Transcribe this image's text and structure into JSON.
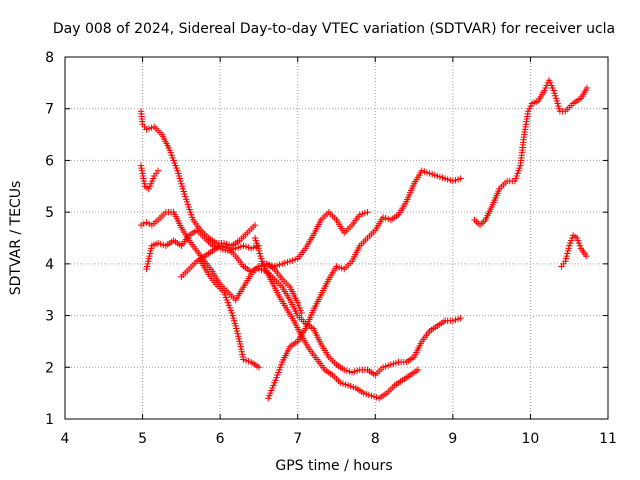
{
  "chart_data": {
    "type": "scatter",
    "title": "Day 008 of 2024, Sidereal Day-to-day VTEC variation (SDTVAR) for receiver ucla",
    "xlabel": "GPS time / hours",
    "ylabel": "SDTVAR / TECUs",
    "xlim": [
      4,
      11
    ],
    "ylim": [
      1,
      8
    ],
    "xticks": [
      "4",
      "5",
      "6",
      "7",
      "8",
      "9",
      "10",
      "11"
    ],
    "yticks": [
      "1",
      "2",
      "3",
      "4",
      "5",
      "6",
      "7",
      "8"
    ],
    "grid": true,
    "marker": "plus",
    "color": "#ff0000",
    "tracks": [
      {
        "x": [
          4.98,
          5.0,
          5.05,
          5.15,
          5.25,
          5.35,
          5.45,
          5.55,
          5.65,
          5.75,
          5.85,
          5.95,
          6.05,
          6.15,
          6.25,
          6.35,
          6.45
        ],
        "y": [
          6.95,
          6.7,
          6.6,
          6.65,
          6.5,
          6.2,
          5.8,
          5.3,
          4.85,
          4.65,
          4.5,
          4.4,
          4.4,
          4.35,
          4.45,
          4.6,
          4.75
        ]
      },
      {
        "x": [
          4.98,
          5.03,
          5.08,
          5.15,
          5.2
        ],
        "y": [
          5.9,
          5.5,
          5.45,
          5.7,
          5.8
        ]
      },
      {
        "x": [
          4.98,
          5.05,
          5.12,
          5.2,
          5.3,
          5.4,
          5.5,
          5.6,
          5.7,
          5.8,
          5.9,
          6.0,
          6.1,
          6.2,
          6.3,
          6.4,
          6.5,
          6.6,
          6.7,
          6.8,
          6.9,
          7.0,
          7.05
        ],
        "y": [
          4.75,
          4.8,
          4.75,
          4.85,
          5.0,
          5.0,
          4.7,
          4.45,
          4.25,
          4.05,
          3.85,
          3.6,
          3.45,
          3.3,
          3.55,
          3.8,
          3.95,
          4.0,
          3.9,
          3.7,
          3.55,
          3.25,
          3.05
        ]
      },
      {
        "x": [
          5.05,
          5.12,
          5.2,
          5.3,
          5.4,
          5.5,
          5.6,
          5.7,
          5.8,
          5.9,
          6.0,
          6.1,
          6.2,
          6.3,
          6.4,
          6.5
        ],
        "y": [
          3.9,
          4.35,
          4.4,
          4.35,
          4.45,
          4.35,
          4.55,
          4.65,
          4.5,
          4.35,
          4.3,
          4.25,
          4.3,
          4.35,
          4.3,
          4.35
        ]
      },
      {
        "x": [
          5.5,
          5.6,
          5.7,
          5.8,
          5.9,
          6.0,
          6.1,
          6.2,
          6.3,
          6.4,
          6.5,
          6.6,
          6.7,
          6.8,
          6.9,
          7.0,
          7.1,
          7.2,
          7.3,
          7.4,
          7.5,
          7.6,
          7.7,
          7.8,
          7.9
        ],
        "y": [
          3.75,
          3.9,
          4.05,
          4.15,
          4.25,
          4.35,
          4.3,
          4.15,
          3.95,
          3.85,
          3.95,
          4.0,
          3.95,
          4.0,
          4.05,
          4.1,
          4.3,
          4.55,
          4.85,
          5.0,
          4.85,
          4.6,
          4.75,
          4.95,
          5.0
        ]
      },
      {
        "x": [
          5.75,
          5.85,
          5.95,
          6.05,
          6.1,
          6.15,
          6.2,
          6.25,
          6.3,
          6.4,
          6.5
        ],
        "y": [
          4.05,
          3.8,
          3.6,
          3.45,
          3.25,
          3.05,
          2.8,
          2.5,
          2.15,
          2.1,
          2.0
        ]
      },
      {
        "x": [
          6.5,
          6.6,
          6.7,
          6.8,
          6.9,
          7.0,
          7.1,
          7.2,
          7.3,
          7.4,
          7.5,
          7.6,
          7.7,
          7.8,
          7.9,
          8.0,
          8.1,
          8.2,
          8.3,
          8.4,
          8.5,
          8.6,
          8.7,
          8.8,
          8.9,
          9.0,
          9.1
        ],
        "y": [
          3.9,
          3.85,
          3.7,
          3.55,
          3.3,
          3.0,
          2.85,
          2.75,
          2.45,
          2.2,
          2.05,
          1.95,
          1.9,
          1.95,
          1.95,
          1.85,
          2.0,
          2.05,
          2.1,
          2.1,
          2.2,
          2.5,
          2.7,
          2.8,
          2.9,
          2.9,
          2.95
        ]
      },
      {
        "x": [
          6.62,
          6.7,
          6.8,
          6.9,
          7.0,
          7.1,
          7.2,
          7.3,
          7.4,
          7.5,
          7.6,
          7.7,
          7.8,
          7.9,
          8.0,
          8.1,
          8.2,
          8.3,
          8.4,
          8.5,
          8.6,
          8.7,
          8.8,
          8.9,
          9.0,
          9.1
        ],
        "y": [
          1.4,
          1.7,
          2.1,
          2.4,
          2.5,
          2.75,
          3.1,
          3.4,
          3.7,
          3.95,
          3.9,
          4.05,
          4.35,
          4.5,
          4.65,
          4.9,
          4.85,
          4.95,
          5.2,
          5.55,
          5.8,
          5.75,
          5.7,
          5.65,
          5.6,
          5.65
        ]
      },
      {
        "x": [
          6.45,
          6.55,
          6.65,
          6.75,
          6.85,
          6.95,
          7.05,
          7.15,
          7.25,
          7.35,
          7.45,
          7.55,
          7.65,
          7.75,
          7.85,
          7.95,
          8.05,
          8.15,
          8.25,
          8.35,
          8.45,
          8.55
        ],
        "y": [
          4.5,
          4.0,
          3.7,
          3.4,
          3.15,
          2.9,
          2.6,
          2.35,
          2.15,
          1.95,
          1.85,
          1.7,
          1.65,
          1.6,
          1.5,
          1.45,
          1.4,
          1.5,
          1.65,
          1.75,
          1.85,
          1.95
        ]
      },
      {
        "x": [
          9.28,
          9.35,
          9.42,
          9.5,
          9.6,
          9.7,
          9.8,
          9.87,
          9.92,
          9.97,
          10.02,
          10.1,
          10.18,
          10.24,
          10.3,
          10.38,
          10.45,
          10.55,
          10.65,
          10.73
        ],
        "y": [
          4.85,
          4.75,
          4.85,
          5.1,
          5.45,
          5.6,
          5.6,
          5.9,
          6.5,
          6.95,
          7.1,
          7.15,
          7.35,
          7.55,
          7.35,
          6.95,
          6.95,
          7.1,
          7.2,
          7.4
        ]
      },
      {
        "x": [
          10.4,
          10.45,
          10.5,
          10.55,
          10.6,
          10.65,
          10.72
        ],
        "y": [
          3.95,
          4.05,
          4.35,
          4.55,
          4.5,
          4.3,
          4.15
        ]
      }
    ]
  }
}
